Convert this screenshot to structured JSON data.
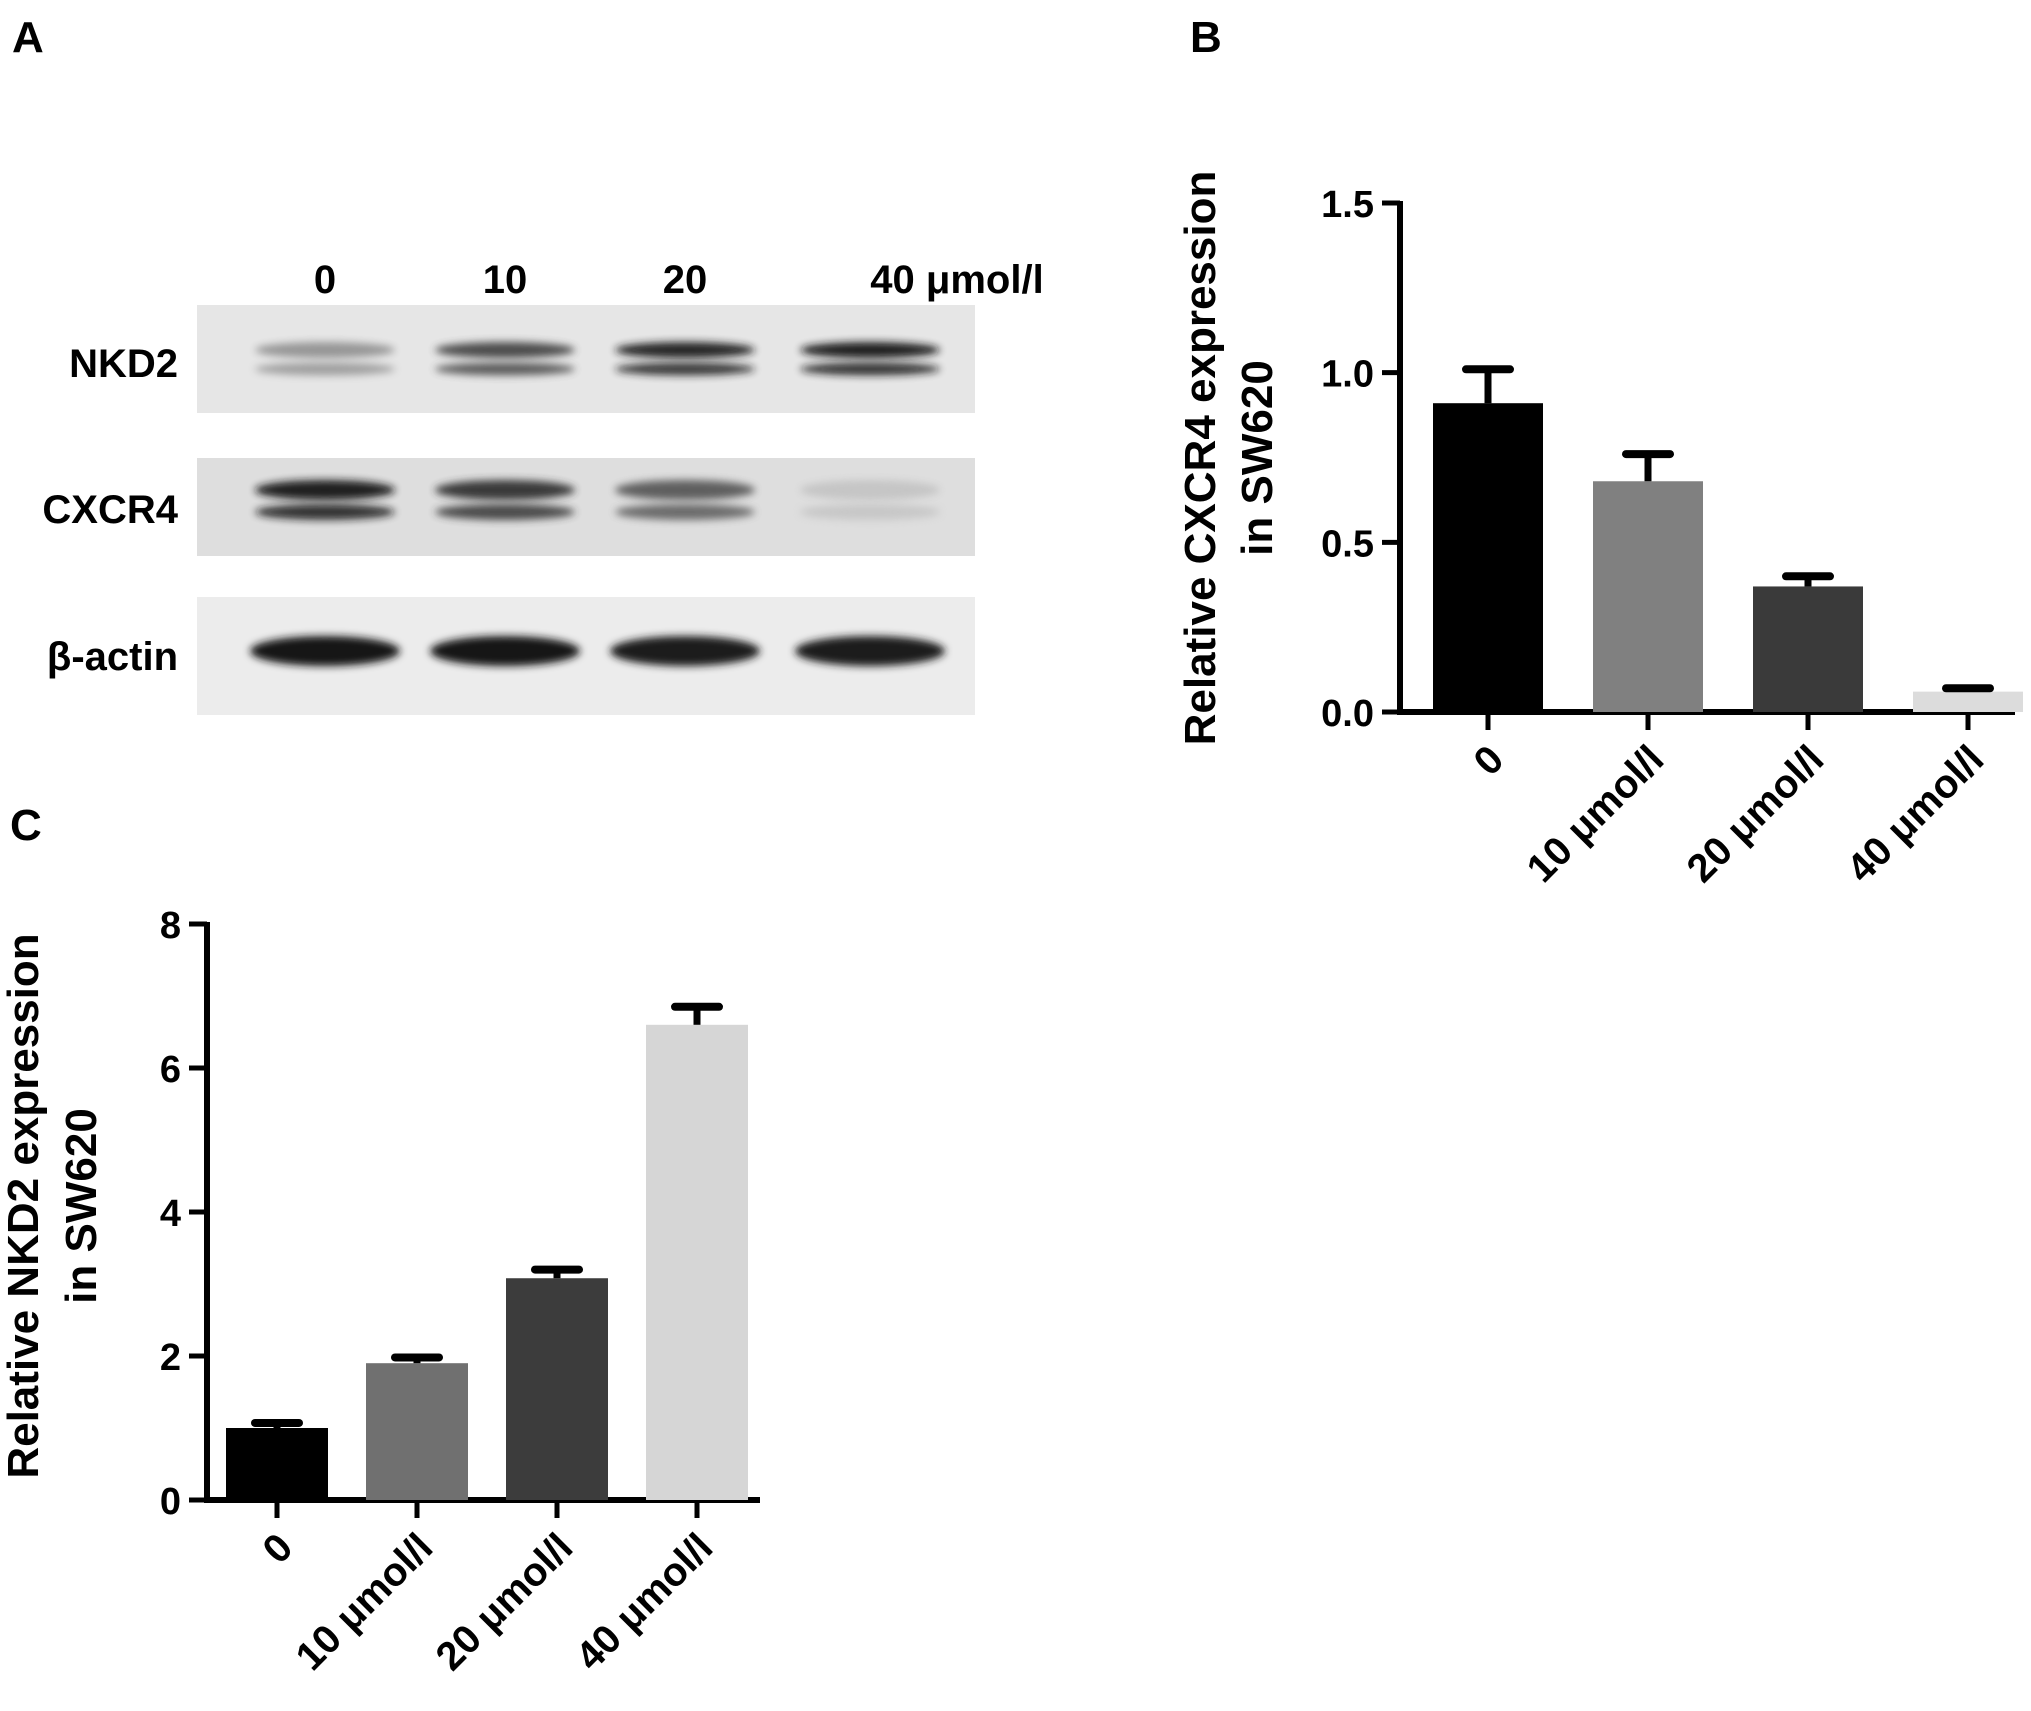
{
  "panel_labels": {
    "a": "A",
    "b": "B",
    "c": "C"
  },
  "blot": {
    "lanes": [
      "0",
      "10",
      "20",
      "40 μmol/l"
    ],
    "rows": [
      {
        "label": "NKD2",
        "band_intensity": [
          0.35,
          0.75,
          0.95,
          1.0
        ],
        "double_band": true
      },
      {
        "label": "CXCR4",
        "band_intensity": [
          1.0,
          0.85,
          0.65,
          0.1
        ],
        "double_band": true
      },
      {
        "label": "β-actin",
        "band_intensity": [
          1.0,
          1.0,
          0.95,
          0.95
        ],
        "double_band": false
      }
    ]
  },
  "chart_data": [
    {
      "type": "bar",
      "panel": "B",
      "categories": [
        "0",
        "10 μmol/l",
        "20 μmol/l",
        "40 μmol/l"
      ],
      "values": [
        0.91,
        0.68,
        0.37,
        0.06
      ],
      "errors": [
        0.1,
        0.08,
        0.03,
        0.01
      ],
      "colors": [
        "#000000",
        "#808080",
        "#3a3a3a",
        "#dcdcdc"
      ],
      "ylabel": [
        "Relative CXCR4 expression",
        "in SW620"
      ],
      "ylim": [
        0,
        1.5
      ],
      "yticks": [
        0,
        0.5,
        1.0,
        1.5
      ],
      "ytick_labels": [
        "0.0",
        "0.5",
        "1.0",
        "1.5"
      ]
    },
    {
      "type": "bar",
      "panel": "C",
      "categories": [
        "0",
        "10 μmol/l",
        "20 μmol/l",
        "40 μmol/l"
      ],
      "values": [
        1.0,
        1.9,
        3.08,
        6.6
      ],
      "errors": [
        0.07,
        0.08,
        0.12,
        0.25
      ],
      "colors": [
        "#000000",
        "#707070",
        "#3c3c3c",
        "#d6d6d6"
      ],
      "ylabel": [
        "Relative NKD2 expression",
        "in SW620"
      ],
      "ylim": [
        0,
        8
      ],
      "yticks": [
        0,
        2,
        4,
        6,
        8
      ],
      "ytick_labels": [
        "0",
        "2",
        "4",
        "6",
        "8"
      ]
    }
  ]
}
